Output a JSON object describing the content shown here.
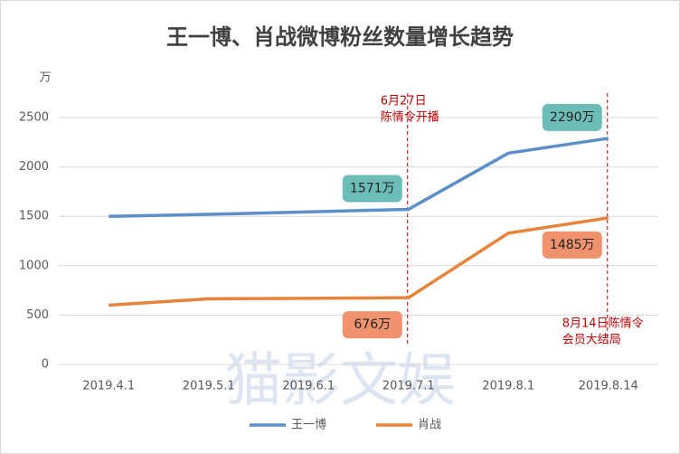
{
  "chart_data": {
    "type": "line",
    "title": "王一博、肖战微博粉丝数量增长趋势",
    "y_unit": "万",
    "watermark": "猫影文娱",
    "categories": [
      "2019.4.1",
      "2019.5.1",
      "2019.6.1",
      "2019.7.1",
      "2019.8.1",
      "2019.8.14"
    ],
    "series": [
      {
        "name": "王一博",
        "color": "#5b8fc9",
        "label_color": "#6cbcb8",
        "values": [
          1500,
          1520,
          1545,
          1571,
          2140,
          2290
        ],
        "value_labels": [
          null,
          null,
          null,
          "1571万",
          null,
          "2290万"
        ]
      },
      {
        "name": "肖战",
        "color": "#e8833a",
        "label_color": "#f0926e",
        "values": [
          600,
          665,
          670,
          676,
          1330,
          1485
        ],
        "value_labels": [
          null,
          null,
          null,
          "676万",
          null,
          "1485万"
        ]
      }
    ],
    "ylim": [
      0,
      2500
    ],
    "yticks": [
      0,
      500,
      1000,
      1500,
      2000,
      2500
    ],
    "grid": true,
    "annotations": [
      {
        "category": "2019.7.1",
        "lines": [
          "6月27日",
          "陈情令开播"
        ]
      },
      {
        "category": "2019.8.14",
        "lines": [
          "8月14日陈情令",
          "会员大结局"
        ]
      }
    ],
    "legend": "bottom"
  }
}
